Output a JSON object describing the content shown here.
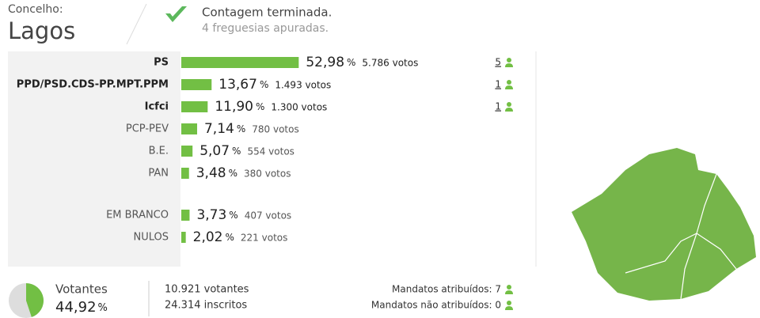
{
  "header": {
    "label": "Concelho:",
    "municipality": "Lagos",
    "status": "Contagem terminada.",
    "detail": "4 freguesias apuradas."
  },
  "results": {
    "percent_unit": "%",
    "bar_color": "#72bf44",
    "rows": [
      {
        "name": "PS",
        "percent": 52.98,
        "percent_label": "52,98",
        "votes": "5.786 votos",
        "mandates": "5"
      },
      {
        "name": "PPD/PSD.CDS-PP.MPT.PPM",
        "percent": 13.67,
        "percent_label": "13,67",
        "votes": "1.493 votos",
        "mandates": "1"
      },
      {
        "name": "Icfci",
        "percent": 11.9,
        "percent_label": "11,90",
        "votes": "1.300 votos",
        "mandates": "1"
      },
      {
        "name": "PCP-PEV",
        "percent": 7.14,
        "percent_label": "7,14",
        "votes": "780 votos"
      },
      {
        "name": "B.E.",
        "percent": 5.07,
        "percent_label": "5,07",
        "votes": "554 votos"
      },
      {
        "name": "PAN",
        "percent": 3.48,
        "percent_label": "3,48",
        "votes": "380 votos"
      }
    ],
    "other_rows": [
      {
        "name": "EM BRANCO",
        "percent": 3.73,
        "percent_label": "3,73",
        "votes": "407 votos"
      },
      {
        "name": "NULOS",
        "percent": 2.02,
        "percent_label": "2,02",
        "votes": "221 votos"
      }
    ]
  },
  "summary": {
    "turnout_title": "Votantes",
    "turnout": 44.92,
    "turnout_label": "44,92",
    "voters": "10.921 votantes",
    "registered": "24.314 inscritos",
    "assigned": "Mandatos atribuídos: 7",
    "unassigned": "Mandatos não atribuídos: 0"
  }
}
